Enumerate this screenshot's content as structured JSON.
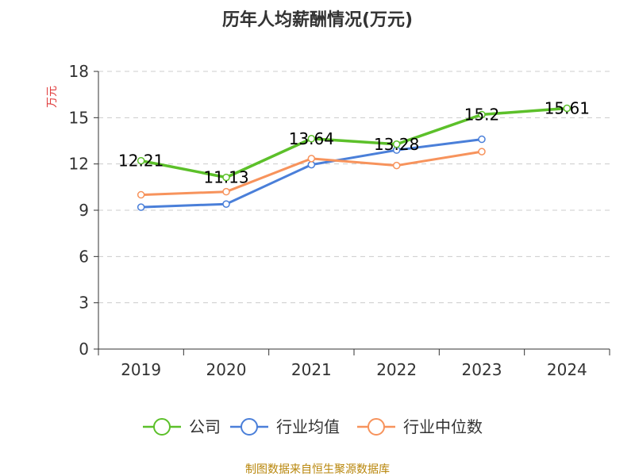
{
  "chart_data": {
    "type": "line",
    "title": "历年人均薪酬情况(万元)",
    "ylabel": "万元",
    "categories": [
      "2019",
      "2020",
      "2021",
      "2022",
      "2023",
      "2024"
    ],
    "ylim": [
      0,
      18
    ],
    "yticks": [
      0,
      3,
      6,
      9,
      12,
      15,
      18
    ],
    "grid": true,
    "legend_position": "bottom",
    "series": [
      {
        "name": "公司",
        "color": "#5cc02a",
        "values": [
          12.21,
          11.13,
          13.64,
          13.28,
          15.2,
          15.61
        ],
        "labels": [
          "12.21",
          "11.13",
          "13.64",
          "13.28",
          "15.2",
          "15.61"
        ]
      },
      {
        "name": "行业均值",
        "color": "#4a7fd9",
        "values": [
          9.2,
          9.4,
          11.95,
          12.9,
          13.6,
          null
        ]
      },
      {
        "name": "行业中位数",
        "color": "#f7935c",
        "values": [
          10.0,
          10.2,
          12.35,
          11.9,
          12.8,
          null
        ]
      }
    ],
    "source": "制图数据来自恒生聚源数据库"
  }
}
